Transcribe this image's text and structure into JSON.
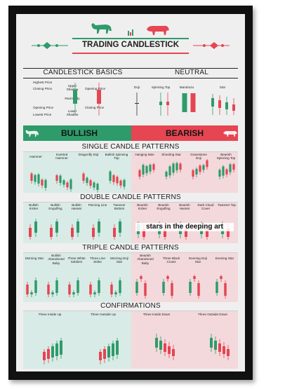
{
  "title": "TRADING CANDLESTICK",
  "colors": {
    "green": "#2e9b6b",
    "red": "#e64552",
    "bull_band": "#2e9b6b",
    "bear_band": "#e64552",
    "panel_green": "#d9ebe6",
    "panel_red": "#f3d9dc"
  },
  "icons": [
    "bull-icon",
    "bear-icon",
    "chart-icon"
  ],
  "basics": {
    "header": "CANDLESTICK BASICS",
    "labels": [
      "Highest Price",
      "Closing Price",
      "Upper Shadow",
      "Opening Price",
      "Real Body",
      "Opening Price",
      "Closing Price",
      "Lowest Price",
      "Lower Shadow"
    ]
  },
  "neutral": {
    "header": "NEUTRAL",
    "items": [
      "Doji",
      "Spinning Top",
      "Marubozu",
      "Star"
    ]
  },
  "band": {
    "bullish": "BULLISH",
    "bearish": "BEARISH"
  },
  "single": {
    "header": "SINGLE CANDLE PATTERNS",
    "bull": [
      "Hammer",
      "Inverted Hammer",
      "Dragonfly Doji",
      "Bullish Spinning Top"
    ],
    "bear": [
      "Hanging Man",
      "Shooting Star",
      "Gravestone Doji",
      "Bearish Spinning Top"
    ]
  },
  "double": {
    "header": "DOUBLE CANDLE PATTERNS",
    "bull": [
      "Bullish Kicker",
      "Bullish Engulfing",
      "Bullish Harami",
      "Piercing Line",
      "Tweezer Bottom"
    ],
    "bear": [
      "Bearish Kicker",
      "Bearish Engulfing",
      "Bearish Harami",
      "Dark Cloud Cover",
      "Tweezer Top"
    ]
  },
  "triple": {
    "header": "TRIPLE CANDLE PATTERNS",
    "bull": [
      "Morning Star",
      "Bullish Abandoned Baby",
      "Three White Soldiers",
      "Three Line Strike",
      "Morning Doji Star"
    ],
    "bear": [
      "Bearish Abandoned Baby",
      "Three Black Crows",
      "Evening Doji Star",
      "Evening Star"
    ]
  },
  "confirm": {
    "header": "CONFIRMATIONS",
    "bull": [
      "Three Inside Up",
      "Three Outside Up"
    ],
    "bear": [
      "Three Inside Down",
      "Three Outside Down"
    ]
  },
  "watermark": "stars in the deeping art"
}
